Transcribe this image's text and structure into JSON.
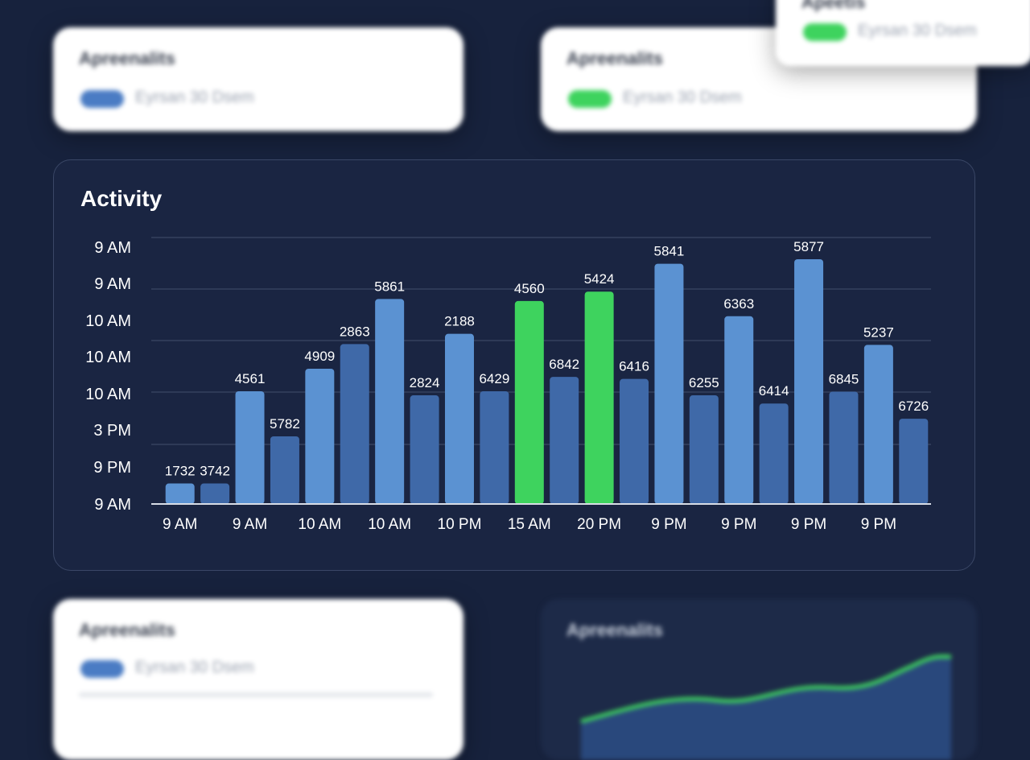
{
  "cards": {
    "top_left": {
      "title": "Apreenalits",
      "subtitle": "Eyrsan 30 Dsem",
      "pill_color": "#4a7cc4"
    },
    "top_right": {
      "title": "Apreenalits",
      "subtitle": "Eyrsan 30 Dsem",
      "pill_color": "#3ed35e"
    },
    "floating": {
      "title": "Apeetis",
      "subtitle": "Eyrsan 30 Dsem",
      "pill_color": "#3ed35e"
    },
    "bottom_left": {
      "title": "Apreenalits",
      "subtitle": "Eyrsan 30 Dsem",
      "pill_color": "#4a7cc4"
    },
    "bottom_right": {
      "title": "Apreenalits"
    }
  },
  "chart_data": {
    "type": "bar",
    "title": "Activity",
    "xlabel": "",
    "ylabel": "",
    "y_tick_labels": [
      "9 AM",
      "9 PM",
      "3 PM",
      "10 AM",
      "10 AM",
      "10 AM",
      "9 AM",
      "9 AM"
    ],
    "x_tick_labels": [
      "9 AM",
      "9 AM",
      "10 AM",
      "10 AM",
      "10 PM",
      "15 AM",
      "20 PM",
      "9 PM",
      "9 PM",
      "9 PM",
      "9 PM"
    ],
    "ylim": [
      0,
      6500
    ],
    "grid": true,
    "values": [
      500,
      500,
      2750,
      1650,
      3300,
      3900,
      5000,
      2650,
      4150,
      2750,
      4950,
      3100,
      5180,
      3050,
      5860,
      2650,
      4580,
      2450,
      5970,
      2740,
      3880,
      2080
    ],
    "labels": [
      "1732",
      "3742",
      "4561",
      "5782",
      "4909",
      "2863",
      "5861",
      "2824",
      "2188",
      "6429",
      "4560",
      "6842",
      "5424",
      "6416",
      "5841",
      "6255",
      "6363",
      "6414",
      "5877",
      "6845",
      "5237",
      "6726"
    ],
    "highlighted": [
      10,
      12
    ],
    "colors": {
      "bar_light": "#5b92d2",
      "bar_dark": "#3f69a8",
      "highlight": "#3ed35e",
      "grid": "#34415e",
      "axis": "#d8dde6"
    }
  }
}
